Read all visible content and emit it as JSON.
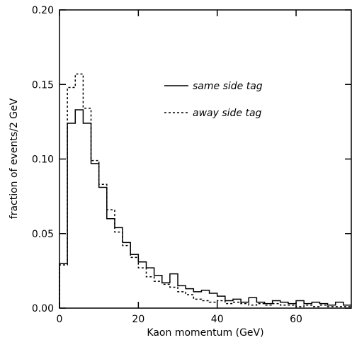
{
  "chart_data": {
    "type": "histogram",
    "xlabel": "Kaon momentum (GeV)",
    "ylabel": "fraction of events/2 GeV",
    "xlim": [
      0,
      74
    ],
    "ylim": [
      0,
      0.2
    ],
    "bin_width": 2,
    "bin_edges_start": 0,
    "x_ticks": [
      {
        "value": 0,
        "label": "0"
      },
      {
        "value": 20,
        "label": "20"
      },
      {
        "value": 40,
        "label": "40"
      },
      {
        "value": 60,
        "label": "60"
      }
    ],
    "y_ticks": [
      {
        "value": 0.0,
        "label": "0.00"
      },
      {
        "value": 0.05,
        "label": "0.05"
      },
      {
        "value": 0.1,
        "label": "0.10"
      },
      {
        "value": 0.15,
        "label": "0.15"
      },
      {
        "value": 0.2,
        "label": "0.20"
      }
    ],
    "legend_position": "top-right",
    "series": [
      {
        "name": "same side tag",
        "style": "solid",
        "values": [
          0.03,
          0.124,
          0.133,
          0.124,
          0.097,
          0.081,
          0.06,
          0.054,
          0.044,
          0.036,
          0.031,
          0.027,
          0.022,
          0.017,
          0.023,
          0.015,
          0.013,
          0.011,
          0.012,
          0.01,
          0.008,
          0.005,
          0.006,
          0.004,
          0.007,
          0.004,
          0.003,
          0.005,
          0.004,
          0.003,
          0.005,
          0.003,
          0.004,
          0.003,
          0.002,
          0.004,
          0.002
        ]
      },
      {
        "name": "away side tag",
        "style": "dashed",
        "values": [
          0.029,
          0.148,
          0.157,
          0.134,
          0.099,
          0.083,
          0.066,
          0.051,
          0.042,
          0.034,
          0.027,
          0.021,
          0.018,
          0.016,
          0.014,
          0.011,
          0.009,
          0.006,
          0.005,
          0.004,
          0.005,
          0.003,
          0.004,
          0.003,
          0.002,
          0.003,
          0.002,
          0.003,
          0.002,
          0.002,
          0.001,
          0.002,
          0.001,
          0.002,
          0.001,
          0.001,
          0.001
        ]
      }
    ]
  }
}
